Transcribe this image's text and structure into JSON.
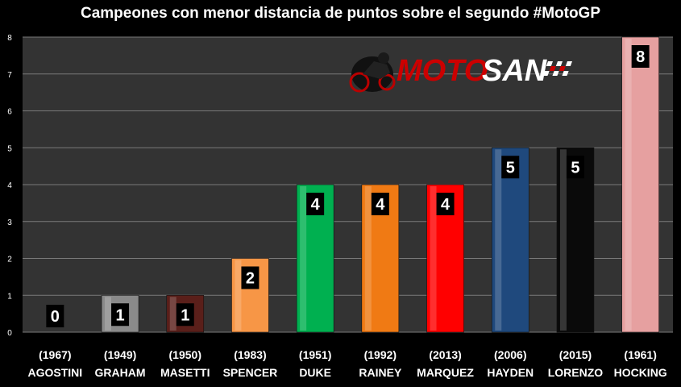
{
  "chart_data": {
    "type": "bar",
    "title": "Campeones con menor distancia de puntos sobre el segundo #MotoGP",
    "categories": [
      {
        "year": "(1967)",
        "name": "AGOSTINI"
      },
      {
        "year": "(1949)",
        "name": "GRAHAM"
      },
      {
        "year": "(1950)",
        "name": "MASETTI"
      },
      {
        "year": "(1983)",
        "name": "SPENCER"
      },
      {
        "year": "(1951)",
        "name": "DUKE"
      },
      {
        "year": "(1992)",
        "name": "RAINEY"
      },
      {
        "year": "(2013)",
        "name": "MARQUEZ"
      },
      {
        "year": "(2006)",
        "name": "HAYDEN"
      },
      {
        "year": "(2015)",
        "name": "LORENZO"
      },
      {
        "year": "(1961)",
        "name": "HOCKING"
      }
    ],
    "values": [
      0,
      1,
      1,
      2,
      4,
      4,
      4,
      5,
      5,
      8
    ],
    "data_labels": [
      "0",
      "1",
      "1",
      "2",
      "4",
      "4",
      "4",
      "5",
      "5",
      "8"
    ],
    "bar_colors": [
      "#1a1a1a",
      "#8a8a8a",
      "#5a1f1a",
      "#f79646",
      "#00b050",
      "#f07a14",
      "#ff0000",
      "#1f497d",
      "#0a0a0a",
      "#e6a0a0"
    ],
    "ylim": [
      0,
      8
    ],
    "yticks": [
      "0",
      "1",
      "2",
      "3",
      "4",
      "5",
      "6",
      "7",
      "8"
    ],
    "xlabel": "",
    "ylabel": "",
    "grid": true,
    "background": "#333333",
    "gridline_color": "#7a7a7a"
  },
  "logo": {
    "text_a": "MOTO",
    "text_b": "SAN",
    "color_a": "#cc0000",
    "color_b": "#ffffff"
  }
}
